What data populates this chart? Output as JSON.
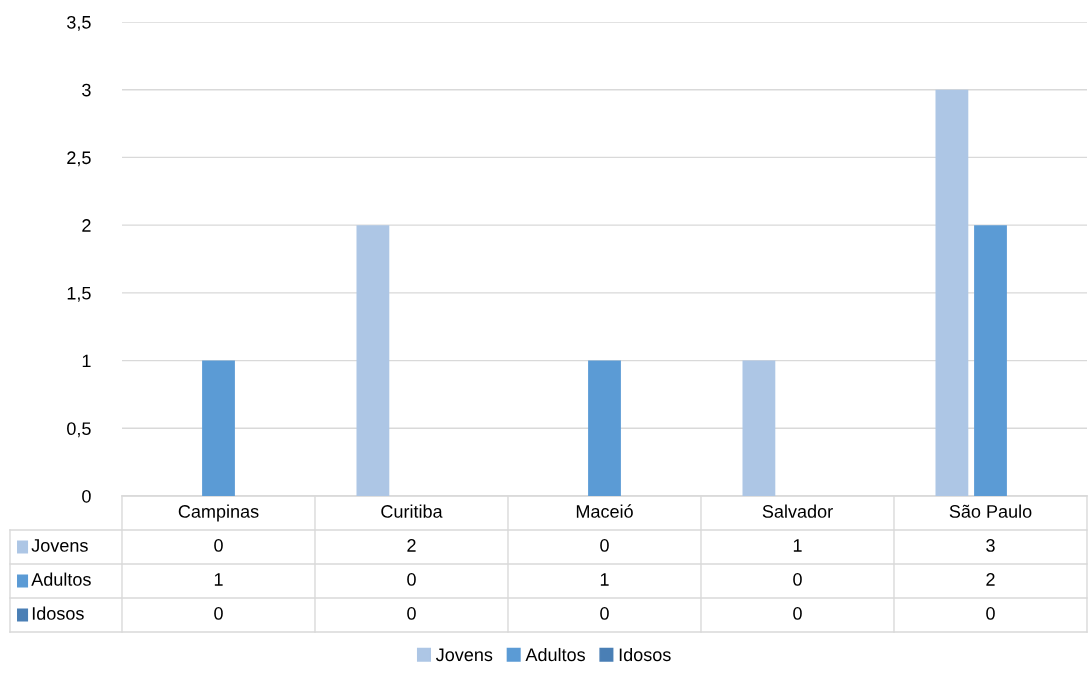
{
  "chart_data": {
    "type": "bar",
    "categories": [
      "Campinas",
      "Curitiba",
      "Maceió",
      "Salvador",
      "São Paulo"
    ],
    "series": [
      {
        "name": "Jovens",
        "color": "#adc6e5",
        "values": [
          0,
          2,
          0,
          1,
          3
        ]
      },
      {
        "name": "Adultos",
        "color": "#5b9bd5",
        "values": [
          1,
          0,
          1,
          0,
          2
        ]
      },
      {
        "name": "Idosos",
        "color": "#4a7fb5",
        "values": [
          0,
          0,
          0,
          0,
          0
        ]
      }
    ],
    "ylim": [
      0,
      3.5
    ],
    "yticks": [
      0,
      {
        "value": 0.5,
        "label": "0,5"
      },
      1,
      {
        "value": 1.5,
        "label": "1,5"
      },
      2,
      {
        "value": 2.5,
        "label": "2,5"
      },
      3,
      {
        "value": 3.5,
        "label": "3,5"
      }
    ],
    "grid": "y",
    "legend": "bottom",
    "data_labels": true
  }
}
